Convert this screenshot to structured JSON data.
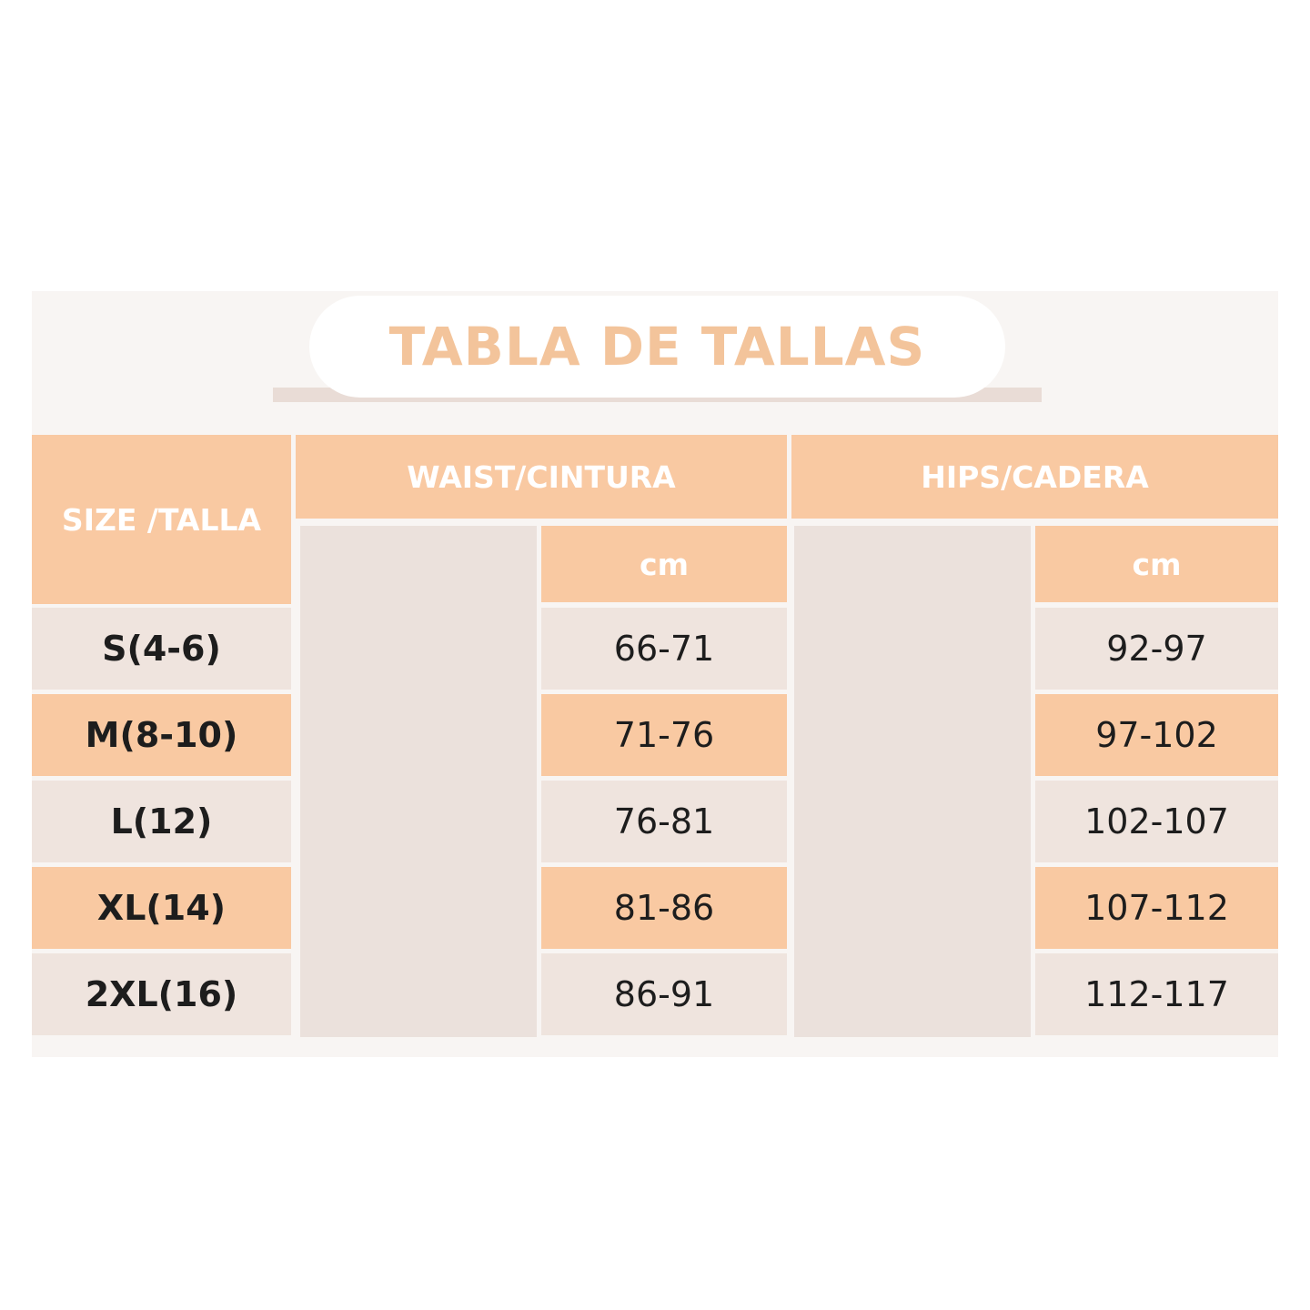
{
  "header": {
    "title": "TABLA DE TALLAS"
  },
  "table": {
    "columns": {
      "size": "SIZE /TALLA",
      "waist": "WAIST/CINTURA",
      "hips": "HIPS/CADERA"
    },
    "units": {
      "waist": "cm",
      "hips": "cm"
    },
    "rows": [
      [
        "S(4-6)",
        "66-71",
        "92-97"
      ],
      [
        "M(8-10)",
        "71-76",
        "97-102"
      ],
      [
        "L(12)",
        "76-81",
        "102-107"
      ],
      [
        "XL(14)",
        "81-86",
        "107-112"
      ],
      [
        "2XL(16)",
        "86-91",
        "112-117"
      ]
    ]
  }
}
